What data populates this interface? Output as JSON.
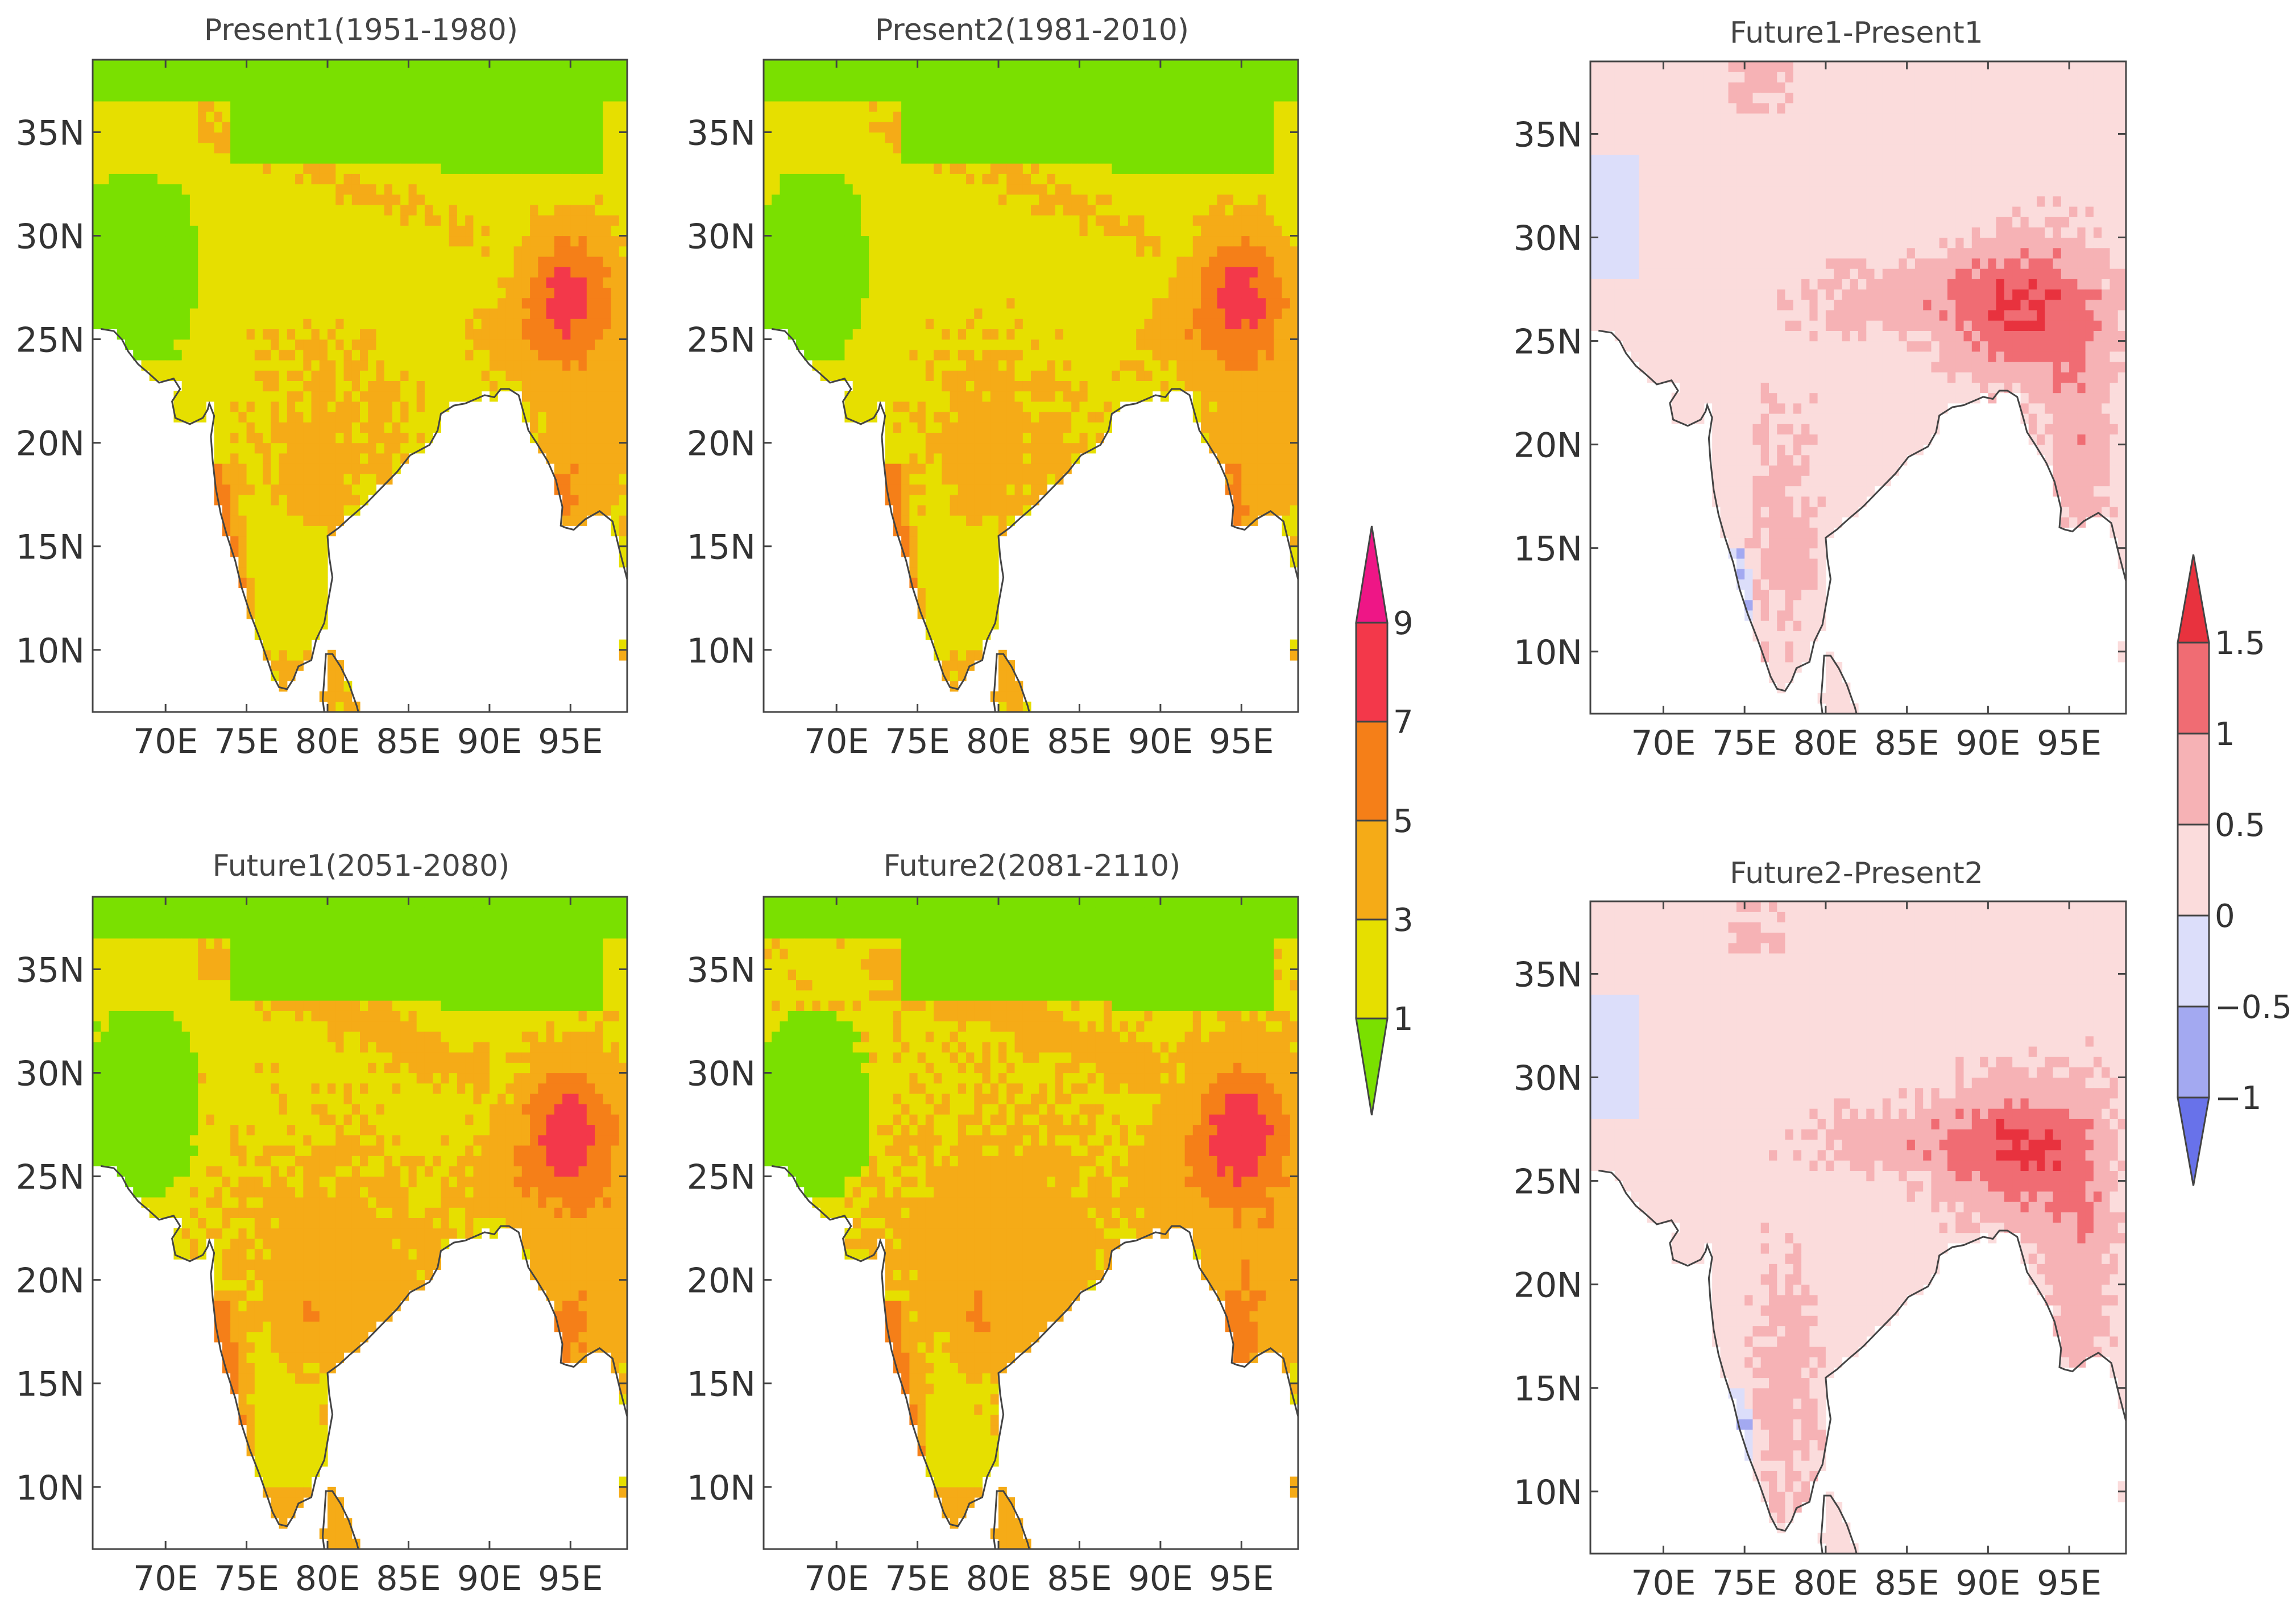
{
  "colors": {
    "absolute_bins": [
      "#7ae000",
      "#e6df00",
      "#f5ab17",
      "#f57f18",
      "#f3384a",
      "#ee1686"
    ],
    "diff_bins": [
      "#6872ea",
      "#a3a9f1",
      "#dcdefa",
      "#fbdcdc",
      "#f6b2b5",
      "#f06c73",
      "#e8323e"
    ],
    "ocean": "#ffffff",
    "coast": "#444444",
    "frame": "#444444"
  },
  "panels": [
    {
      "id": "present1",
      "title": "Present1(1951-1980)",
      "kind": "absolute",
      "variant": "p1"
    },
    {
      "id": "present2",
      "title": "Present2(1981-2010)",
      "kind": "absolute",
      "variant": "p2"
    },
    {
      "id": "diff1",
      "title": "Future1-Present1",
      "kind": "diff",
      "variant": "d1"
    },
    {
      "id": "future1",
      "title": "Future1(2051-2080)",
      "kind": "absolute",
      "variant": "f1"
    },
    {
      "id": "future2",
      "title": "Future2(2081-2110)",
      "kind": "absolute",
      "variant": "f2"
    },
    {
      "id": "diff2",
      "title": "Future2-Present2",
      "kind": "diff",
      "variant": "d2"
    }
  ],
  "chart_data": {
    "type": "heatmap",
    "region": "South Asia",
    "xaxis": {
      "range": [
        65.5,
        98.5
      ],
      "ticks": [
        70,
        75,
        80,
        85,
        90,
        95
      ],
      "tick_labels": [
        "70E",
        "75E",
        "80E",
        "85E",
        "90E",
        "95E"
      ]
    },
    "yaxis": {
      "range": [
        7,
        38.5
      ],
      "ticks": [
        10,
        15,
        20,
        25,
        30,
        35
      ],
      "tick_labels": [
        "10N",
        "15N",
        "20N",
        "25N",
        "30N",
        "35N"
      ]
    },
    "colorbars": [
      {
        "id": "absolute",
        "levels": [
          1,
          3,
          5,
          7,
          9
        ],
        "level_labels": [
          "1",
          "3",
          "5",
          "7",
          "9"
        ],
        "extend": "both"
      },
      {
        "id": "difference",
        "levels": [
          -1,
          -0.5,
          0,
          0.5,
          1,
          1.5
        ],
        "level_labels": [
          "−1",
          "−0.5",
          "0",
          "0.5",
          "1",
          "1.5"
        ],
        "extend": "both"
      }
    ],
    "coastline": [
      [
        66.0,
        25.5
      ],
      [
        66.8,
        25.4
      ],
      [
        67.3,
        25.0
      ],
      [
        67.7,
        24.4
      ],
      [
        68.3,
        23.8
      ],
      [
        68.9,
        23.4
      ],
      [
        69.6,
        22.9
      ],
      [
        70.5,
        23.1
      ],
      [
        70.9,
        22.6
      ],
      [
        70.4,
        22.0
      ],
      [
        70.6,
        21.2
      ],
      [
        71.5,
        20.9
      ],
      [
        72.3,
        21.2
      ],
      [
        72.6,
        21.6
      ],
      [
        72.7,
        21.9
      ],
      [
        73.0,
        21.3
      ],
      [
        72.8,
        20.3
      ],
      [
        72.9,
        19.2
      ],
      [
        73.1,
        17.8
      ],
      [
        73.4,
        16.6
      ],
      [
        73.8,
        15.5
      ],
      [
        74.3,
        14.3
      ],
      [
        74.7,
        13.0
      ],
      [
        75.2,
        11.8
      ],
      [
        75.8,
        10.6
      ],
      [
        76.3,
        9.5
      ],
      [
        76.6,
        8.8
      ],
      [
        77.0,
        8.2
      ],
      [
        77.5,
        8.1
      ],
      [
        77.9,
        8.6
      ],
      [
        78.2,
        9.2
      ],
      [
        79.0,
        9.5
      ],
      [
        79.3,
        10.5
      ],
      [
        79.8,
        11.3
      ],
      [
        80.0,
        12.2
      ],
      [
        80.3,
        13.5
      ],
      [
        80.1,
        14.5
      ],
      [
        80.0,
        15.5
      ],
      [
        80.7,
        15.9
      ],
      [
        81.4,
        16.4
      ],
      [
        82.3,
        17.0
      ],
      [
        83.3,
        17.8
      ],
      [
        84.3,
        18.6
      ],
      [
        85.1,
        19.4
      ],
      [
        86.3,
        19.9
      ],
      [
        86.8,
        20.6
      ],
      [
        87.0,
        21.4
      ],
      [
        87.8,
        21.8
      ],
      [
        88.5,
        21.9
      ],
      [
        89.1,
        22.1
      ],
      [
        89.7,
        22.3
      ],
      [
        90.3,
        22.2
      ],
      [
        90.7,
        22.6
      ],
      [
        91.2,
        22.6
      ],
      [
        91.8,
        22.3
      ],
      [
        92.2,
        21.2
      ],
      [
        92.4,
        20.6
      ],
      [
        92.9,
        20.0
      ],
      [
        93.6,
        19.1
      ],
      [
        94.1,
        18.2
      ],
      [
        94.5,
        16.9
      ],
      [
        94.4,
        16.0
      ],
      [
        94.7,
        15.9
      ],
      [
        95.2,
        15.8
      ],
      [
        95.9,
        16.3
      ],
      [
        96.8,
        16.7
      ],
      [
        97.6,
        16.2
      ],
      [
        98.0,
        14.9
      ],
      [
        98.3,
        14.0
      ],
      [
        98.5,
        13.4
      ]
    ],
    "sri_lanka": [
      [
        79.9,
        9.8
      ],
      [
        80.3,
        9.8
      ],
      [
        80.8,
        9.2
      ],
      [
        81.3,
        8.4
      ],
      [
        81.8,
        7.3
      ],
      [
        81.9,
        7.0
      ],
      [
        79.8,
        7.0
      ],
      [
        79.7,
        7.6
      ],
      [
        79.8,
        8.6
      ]
    ],
    "andaman": [
      [
        98.2,
        10.3
      ],
      [
        98.5,
        10.4
      ],
      [
        98.5,
        9.3
      ],
      [
        98.2,
        9.3
      ]
    ]
  }
}
